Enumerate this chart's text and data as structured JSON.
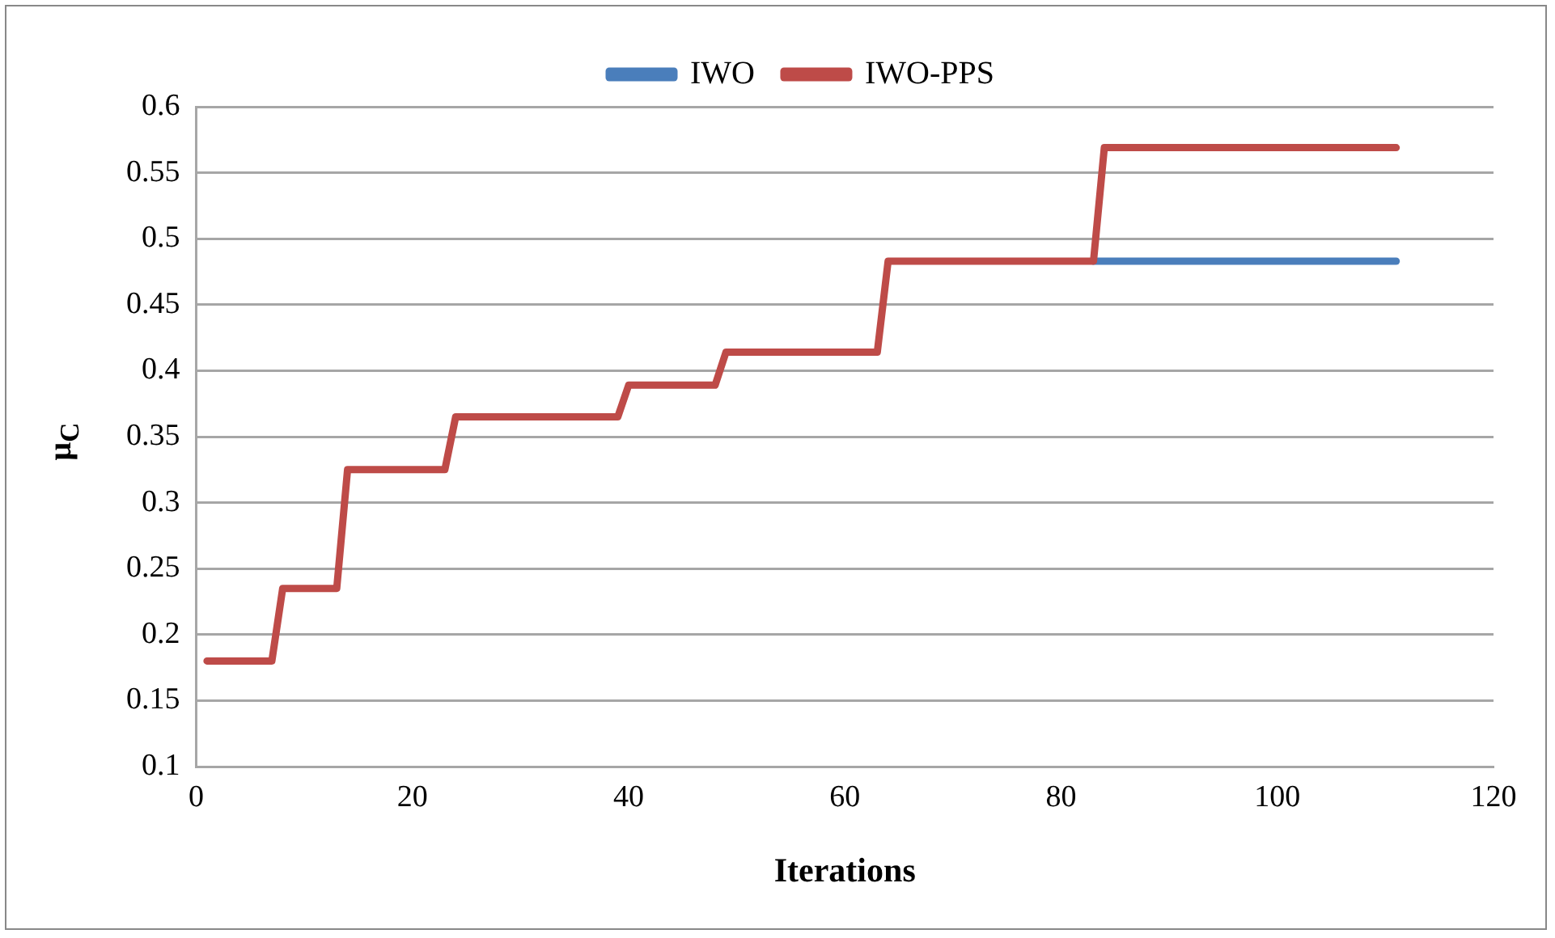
{
  "chart_data": {
    "type": "line",
    "xlabel": "Iterations",
    "ylabel": "μ$_{C}$",
    "xlim": [
      0,
      120
    ],
    "xticks": [
      0,
      20,
      40,
      60,
      80,
      100,
      120
    ],
    "ylim": [
      0.1,
      0.6
    ],
    "yticks": [
      0.1,
      0.15,
      0.2,
      0.25,
      0.3,
      0.35,
      0.4,
      0.45,
      0.5,
      0.55,
      0.6
    ],
    "grid": "y",
    "legend": "top",
    "marker": "none",
    "line_style": "solid",
    "series": [
      {
        "name": "IWO",
        "color": "#4a7ebb",
        "x": [
          83,
          111
        ],
        "values": [
          0.483,
          0.483
        ]
      },
      {
        "name": "IWO-PPS",
        "color": "#be4b48",
        "x": [
          1,
          7,
          8,
          13,
          14,
          23,
          24,
          39,
          40,
          48,
          49,
          63,
          64,
          83,
          84,
          111
        ],
        "values": [
          0.18,
          0.18,
          0.235,
          0.235,
          0.325,
          0.325,
          0.365,
          0.365,
          0.389,
          0.389,
          0.414,
          0.414,
          0.483,
          0.483,
          0.569,
          0.569
        ]
      }
    ]
  }
}
